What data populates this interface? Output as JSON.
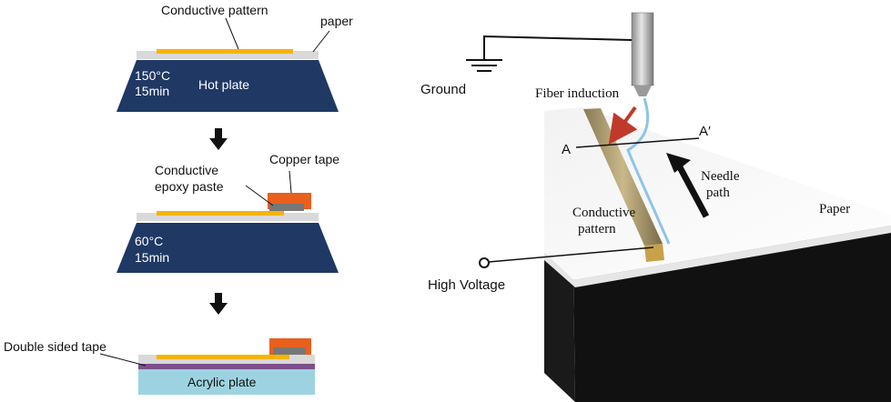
{
  "left_panel": {
    "step1": {
      "conductive_pattern_label": "Conductive pattern",
      "paper_label": "paper",
      "temp": "150°C",
      "time": "15min",
      "hot_plate_label": "Hot plate"
    },
    "step2": {
      "epoxy_label_line1": "Conductive",
      "epoxy_label_line2": "epoxy paste",
      "copper_tape_label": "Copper tape",
      "temp": "60°C",
      "time": "15min"
    },
    "step3": {
      "double_sided_tape_label": "Double sided tape",
      "acrylic_plate_label": "Acrylic plate"
    },
    "colors": {
      "hot_plate": "#1f3864",
      "conductive": "#f5b400",
      "copper": "#e8601c",
      "paper": "#d9d9d9",
      "acrylic": "#9dd3e0",
      "tape": "#7b4f8c"
    }
  },
  "right_panel": {
    "ground_label": "Ground",
    "fiber_induction_label": "Fiber induction",
    "a_label": "A",
    "a_prime_label": "A′",
    "needle_path_line1": "Needle",
    "needle_path_line2": "path",
    "conductive_pattern_line1": "Conductive",
    "conductive_pattern_line2": "pattern",
    "paper_label": "Paper",
    "high_voltage_label": "High Voltage"
  }
}
